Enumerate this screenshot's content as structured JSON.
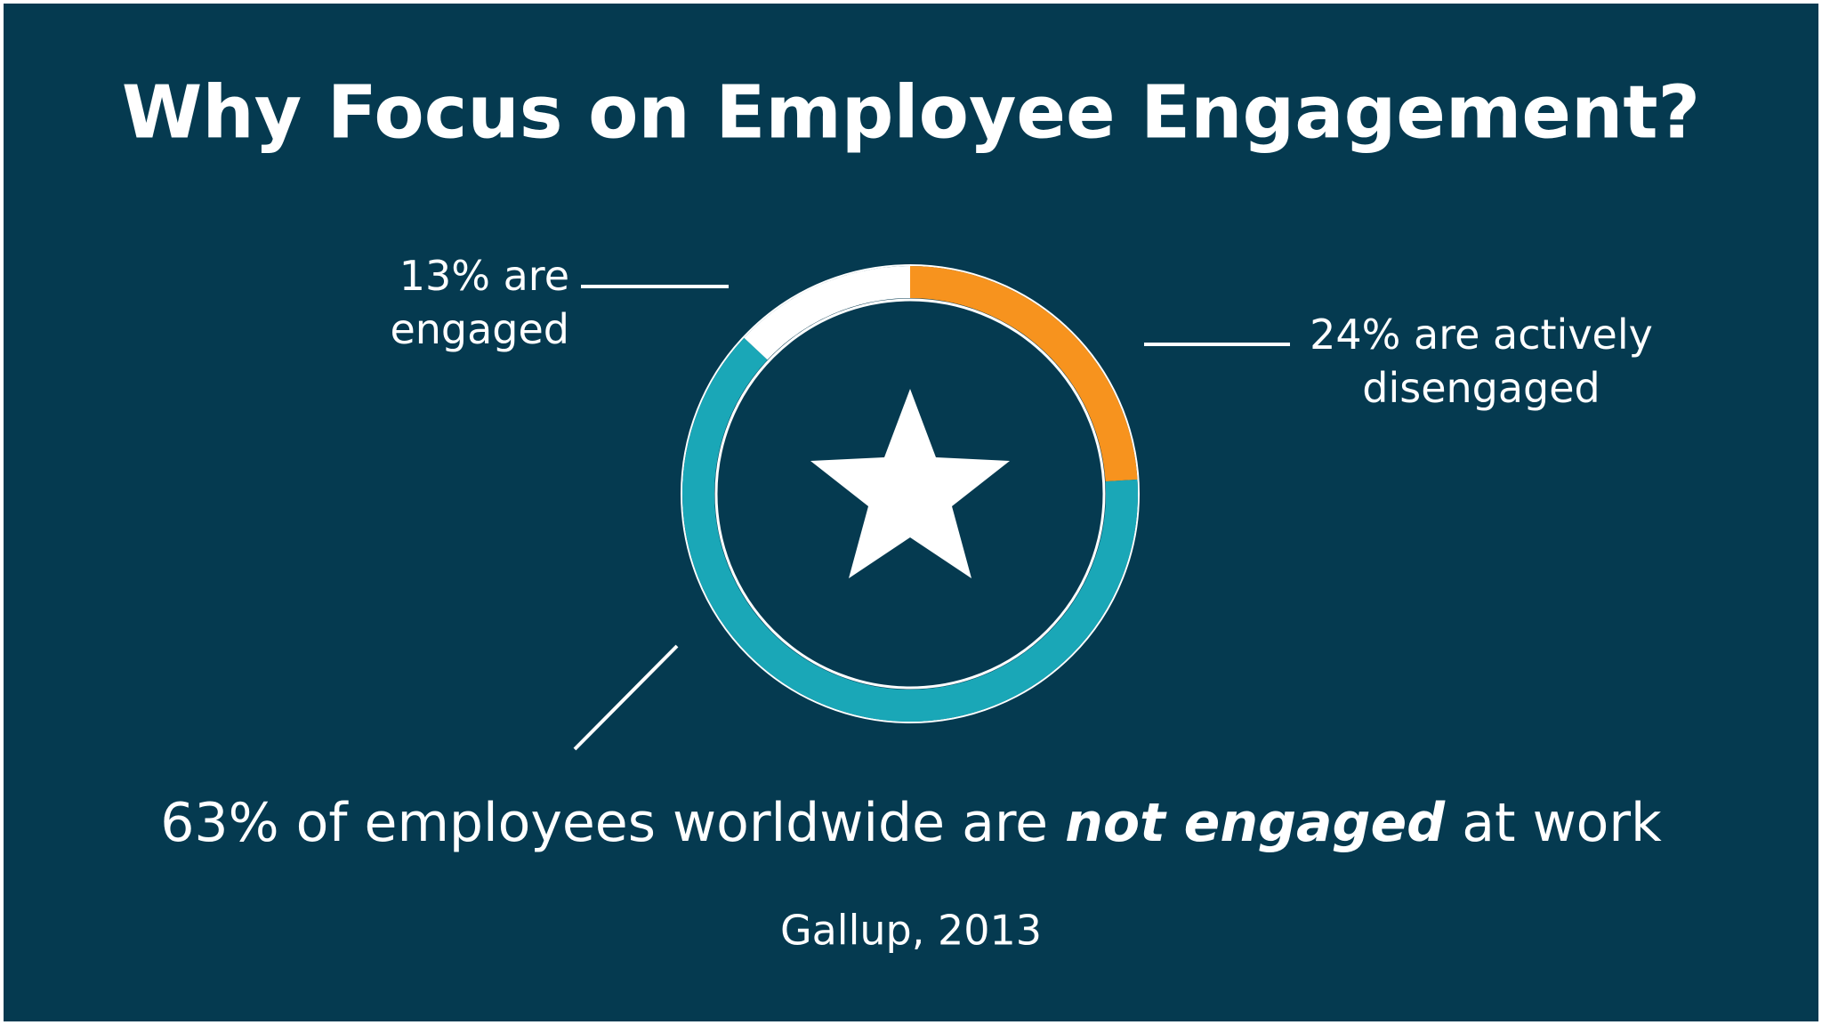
{
  "chart_data": {
    "type": "donut",
    "title": "Why Focus on Employee Engagement?",
    "categories": [
      "actively disengaged",
      "not engaged",
      "engaged"
    ],
    "values": [
      24,
      63,
      13
    ],
    "colors": [
      "#f7931e",
      "#1aa7b7",
      "#ffffff"
    ],
    "value_labels": [
      "24% are actively disengaged",
      "63% of employees worldwide are not engaged at work",
      "13% are engaged"
    ],
    "emphasis": "not engaged",
    "source": "Gallup, 2013"
  }
}
